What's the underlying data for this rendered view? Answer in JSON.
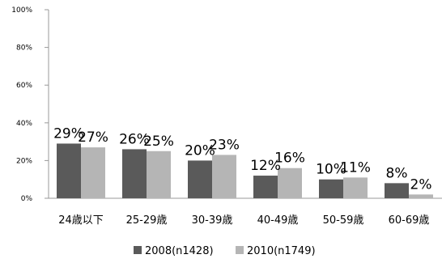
{
  "chart_data": {
    "type": "bar",
    "title": "",
    "xlabel": "",
    "ylabel": "",
    "ylim": [
      0,
      100
    ],
    "yticks": [
      0,
      20,
      40,
      60,
      80,
      100
    ],
    "ytick_labels": [
      "0%",
      "20%",
      "40%",
      "60%",
      "80%",
      "100%"
    ],
    "grid": false,
    "legend_position": "bottom",
    "categories": [
      "24歳以下",
      "25-29歳",
      "30-39歳",
      "40-49歳",
      "50-59歳",
      "60-69歳"
    ],
    "series": [
      {
        "name": "2008(n1428)",
        "color": "#5a5a5a",
        "values": [
          29,
          26,
          20,
          12,
          10,
          8
        ],
        "labels": [
          "29%",
          "26%",
          "20%",
          "12%",
          "10%",
          "8%"
        ]
      },
      {
        "name": "2010(n1749)",
        "color": "#b5b5b5",
        "values": [
          27,
          25,
          23,
          16,
          11,
          2
        ],
        "labels": [
          "27%",
          "25%",
          "23%",
          "16%",
          "11%",
          "2%"
        ]
      }
    ]
  }
}
